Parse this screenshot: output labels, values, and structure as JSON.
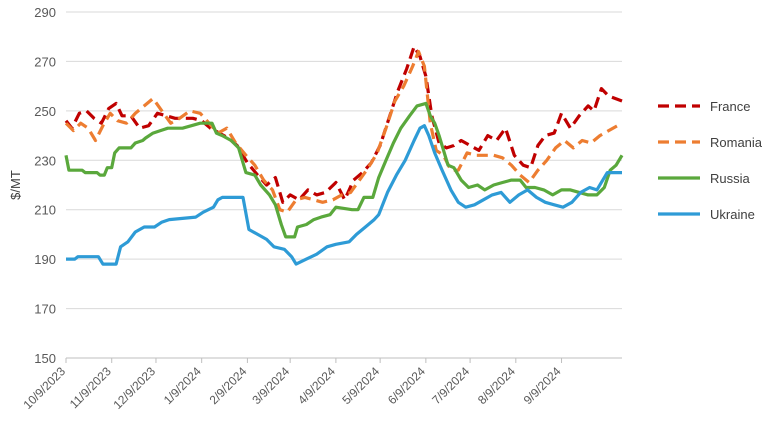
{
  "chart_data": {
    "type": "line",
    "ylabel": "$/MT",
    "ylim": [
      150,
      290
    ],
    "yticks": [
      150,
      170,
      190,
      210,
      230,
      250,
      270,
      290
    ],
    "xlim": [
      "2023-10-09",
      "2024-10-20"
    ],
    "xticks": [
      "10/9/2023",
      "11/9/2023",
      "12/9/2023",
      "1/9/2024",
      "2/9/2024",
      "3/9/2024",
      "4/9/2024",
      "5/9/2024",
      "6/9/2024",
      "7/9/2024",
      "8/9/2024",
      "9/9/2024"
    ],
    "grid": "horizontal",
    "legend": "right",
    "series": [
      {
        "name": "France",
        "color": "#c00000",
        "dash": "dashed",
        "points": [
          [
            "2023-10-09",
            246
          ],
          [
            "2023-10-13",
            243
          ],
          [
            "2023-10-18",
            249
          ],
          [
            "2023-10-23",
            250
          ],
          [
            "2023-10-28",
            247
          ],
          [
            "2023-11-02",
            245
          ],
          [
            "2023-11-07",
            251
          ],
          [
            "2023-11-12",
            253
          ],
          [
            "2023-11-16",
            248
          ],
          [
            "2023-11-22",
            248
          ],
          [
            "2023-11-28",
            243
          ],
          [
            "2023-12-04",
            244
          ],
          [
            "2023-12-10",
            249
          ],
          [
            "2023-12-16",
            248
          ],
          [
            "2023-12-22",
            247
          ],
          [
            "2023-12-28",
            247
          ],
          [
            "2024-01-03",
            247
          ],
          [
            "2024-01-09",
            246
          ],
          [
            "2024-01-15",
            243
          ],
          [
            "2024-01-21",
            241
          ],
          [
            "2024-01-27",
            239
          ],
          [
            "2024-02-02",
            236
          ],
          [
            "2024-02-09",
            229
          ],
          [
            "2024-02-16",
            224
          ],
          [
            "2024-02-22",
            220
          ],
          [
            "2024-02-28",
            223
          ],
          [
            "2024-03-04",
            213
          ],
          [
            "2024-03-09",
            216
          ],
          [
            "2024-03-15",
            214
          ],
          [
            "2024-03-21",
            218
          ],
          [
            "2024-03-27",
            216
          ],
          [
            "2024-04-02",
            217
          ],
          [
            "2024-04-09",
            221
          ],
          [
            "2024-04-15",
            214
          ],
          [
            "2024-04-21",
            222
          ],
          [
            "2024-04-27",
            225
          ],
          [
            "2024-05-03",
            229
          ],
          [
            "2024-05-09",
            236
          ],
          [
            "2024-05-15",
            247
          ],
          [
            "2024-05-21",
            258
          ],
          [
            "2024-05-27",
            267
          ],
          [
            "2024-06-01",
            276
          ],
          [
            "2024-06-05",
            272
          ],
          [
            "2024-06-09",
            264
          ],
          [
            "2024-06-13",
            248
          ],
          [
            "2024-06-18",
            237
          ],
          [
            "2024-06-23",
            235
          ],
          [
            "2024-06-28",
            236
          ],
          [
            "2024-07-03",
            238
          ],
          [
            "2024-07-09",
            236
          ],
          [
            "2024-07-15",
            234
          ],
          [
            "2024-07-21",
            240
          ],
          [
            "2024-07-27",
            238
          ],
          [
            "2024-08-02",
            243
          ],
          [
            "2024-08-08",
            232
          ],
          [
            "2024-08-14",
            228
          ],
          [
            "2024-08-19",
            227
          ],
          [
            "2024-08-24",
            236
          ],
          [
            "2024-08-29",
            240
          ],
          [
            "2024-09-04",
            241
          ],
          [
            "2024-09-09",
            249
          ],
          [
            "2024-09-15",
            243
          ],
          [
            "2024-09-21",
            248
          ],
          [
            "2024-09-27",
            252
          ],
          [
            "2024-10-01",
            250
          ],
          [
            "2024-10-06",
            259
          ],
          [
            "2024-10-11",
            256
          ],
          [
            "2024-10-20",
            254
          ]
        ]
      },
      {
        "name": "Romania",
        "color": "#ed7d31",
        "dash": "dashed",
        "points": [
          [
            "2023-10-09",
            245
          ],
          [
            "2023-10-14",
            242
          ],
          [
            "2023-10-19",
            245
          ],
          [
            "2023-10-24",
            243
          ],
          [
            "2023-10-29",
            238
          ],
          [
            "2023-11-03",
            244
          ],
          [
            "2023-11-08",
            249
          ],
          [
            "2023-11-13",
            246
          ],
          [
            "2023-11-19",
            245
          ],
          [
            "2023-11-25",
            249
          ],
          [
            "2023-12-01",
            252
          ],
          [
            "2023-12-07",
            255
          ],
          [
            "2023-12-13",
            250
          ],
          [
            "2023-12-19",
            245
          ],
          [
            "2023-12-25",
            247
          ],
          [
            "2024-01-01",
            250
          ],
          [
            "2024-01-08",
            249
          ],
          [
            "2024-01-14",
            245
          ],
          [
            "2024-01-20",
            241
          ],
          [
            "2024-01-26",
            243
          ],
          [
            "2024-02-01",
            237
          ],
          [
            "2024-02-08",
            232
          ],
          [
            "2024-02-14",
            228
          ],
          [
            "2024-02-20",
            222
          ],
          [
            "2024-02-26",
            218
          ],
          [
            "2024-03-02",
            210
          ],
          [
            "2024-03-07",
            209
          ],
          [
            "2024-03-13",
            214
          ],
          [
            "2024-03-19",
            215
          ],
          [
            "2024-03-25",
            214
          ],
          [
            "2024-03-31",
            213
          ],
          [
            "2024-04-07",
            214
          ],
          [
            "2024-04-13",
            216
          ],
          [
            "2024-04-19",
            217
          ],
          [
            "2024-04-25",
            222
          ],
          [
            "2024-05-01",
            227
          ],
          [
            "2024-05-07",
            233
          ],
          [
            "2024-05-13",
            243
          ],
          [
            "2024-05-19",
            254
          ],
          [
            "2024-05-25",
            260
          ],
          [
            "2024-05-31",
            268
          ],
          [
            "2024-06-04",
            274
          ],
          [
            "2024-06-08",
            268
          ],
          [
            "2024-06-12",
            245
          ],
          [
            "2024-06-16",
            234
          ],
          [
            "2024-06-21",
            232
          ],
          [
            "2024-06-26",
            226
          ],
          [
            "2024-07-01",
            226
          ],
          [
            "2024-07-07",
            233
          ],
          [
            "2024-07-13",
            232
          ],
          [
            "2024-07-19",
            232
          ],
          [
            "2024-07-25",
            232
          ],
          [
            "2024-07-31",
            231
          ],
          [
            "2024-08-06",
            228
          ],
          [
            "2024-08-12",
            224
          ],
          [
            "2024-08-18",
            221
          ],
          [
            "2024-08-24",
            226
          ],
          [
            "2024-08-30",
            230
          ],
          [
            "2024-09-05",
            235
          ],
          [
            "2024-09-11",
            238
          ],
          [
            "2024-09-17",
            235
          ],
          [
            "2024-09-23",
            238
          ],
          [
            "2024-09-29",
            237
          ],
          [
            "2024-10-05",
            240
          ],
          [
            "2024-10-11",
            242
          ],
          [
            "2024-10-20",
            245
          ]
        ]
      },
      {
        "name": "Russia",
        "color": "#5aa83c",
        "dash": "solid",
        "points": [
          [
            "2023-10-09",
            232
          ],
          [
            "2023-10-11",
            226
          ],
          [
            "2023-10-20",
            226
          ],
          [
            "2023-10-22",
            225
          ],
          [
            "2023-10-30",
            225
          ],
          [
            "2023-11-01",
            224
          ],
          [
            "2023-11-04",
            224
          ],
          [
            "2023-11-06",
            227
          ],
          [
            "2023-11-09",
            227
          ],
          [
            "2023-11-11",
            233
          ],
          [
            "2023-11-14",
            235
          ],
          [
            "2023-11-22",
            235
          ],
          [
            "2023-11-25",
            237
          ],
          [
            "2023-11-30",
            238
          ],
          [
            "2023-12-02",
            239
          ],
          [
            "2023-12-07",
            241
          ],
          [
            "2023-12-12",
            242
          ],
          [
            "2023-12-17",
            243
          ],
          [
            "2023-12-27",
            243
          ],
          [
            "2024-01-02",
            244
          ],
          [
            "2024-01-08",
            245
          ],
          [
            "2024-01-16",
            245
          ],
          [
            "2024-01-19",
            241
          ],
          [
            "2024-01-23",
            240
          ],
          [
            "2024-01-29",
            238
          ],
          [
            "2024-02-03",
            235
          ],
          [
            "2024-02-08",
            225
          ],
          [
            "2024-02-14",
            224
          ],
          [
            "2024-02-18",
            220
          ],
          [
            "2024-02-24",
            216
          ],
          [
            "2024-02-28",
            212
          ],
          [
            "2024-03-03",
            204
          ],
          [
            "2024-03-06",
            199
          ],
          [
            "2024-03-12",
            199
          ],
          [
            "2024-03-14",
            203
          ],
          [
            "2024-03-20",
            204
          ],
          [
            "2024-03-25",
            206
          ],
          [
            "2024-03-30",
            207
          ],
          [
            "2024-04-05",
            208
          ],
          [
            "2024-04-09",
            211
          ],
          [
            "2024-04-20",
            210
          ],
          [
            "2024-04-24",
            210
          ],
          [
            "2024-04-28",
            215
          ],
          [
            "2024-05-04",
            215
          ],
          [
            "2024-05-08",
            223
          ],
          [
            "2024-05-13",
            230
          ],
          [
            "2024-05-18",
            237
          ],
          [
            "2024-05-23",
            243
          ],
          [
            "2024-05-29",
            248
          ],
          [
            "2024-06-03",
            252
          ],
          [
            "2024-06-09",
            253
          ],
          [
            "2024-06-12",
            248
          ],
          [
            "2024-06-15",
            245
          ],
          [
            "2024-06-18",
            240
          ],
          [
            "2024-06-24",
            228
          ],
          [
            "2024-06-28",
            227
          ],
          [
            "2024-07-03",
            222
          ],
          [
            "2024-07-08",
            219
          ],
          [
            "2024-07-14",
            220
          ],
          [
            "2024-07-19",
            218
          ],
          [
            "2024-07-25",
            220
          ],
          [
            "2024-07-31",
            221
          ],
          [
            "2024-08-06",
            222
          ],
          [
            "2024-08-12",
            222
          ],
          [
            "2024-08-16",
            219
          ],
          [
            "2024-08-22",
            219
          ],
          [
            "2024-08-28",
            218
          ],
          [
            "2024-09-03",
            216
          ],
          [
            "2024-09-09",
            218
          ],
          [
            "2024-09-15",
            218
          ],
          [
            "2024-09-21",
            217
          ],
          [
            "2024-09-27",
            216
          ],
          [
            "2024-10-03",
            216
          ],
          [
            "2024-10-08",
            219
          ],
          [
            "2024-10-12",
            226
          ],
          [
            "2024-10-16",
            228
          ],
          [
            "2024-10-20",
            232
          ]
        ]
      },
      {
        "name": "Ukraine",
        "color": "#2e9bd6",
        "dash": "solid",
        "points": [
          [
            "2023-10-09",
            190
          ],
          [
            "2023-10-15",
            190
          ],
          [
            "2023-10-17",
            191
          ],
          [
            "2023-10-31",
            191
          ],
          [
            "2023-11-03",
            188
          ],
          [
            "2023-11-12",
            188
          ],
          [
            "2023-11-15",
            195
          ],
          [
            "2023-11-20",
            197
          ],
          [
            "2023-11-25",
            201
          ],
          [
            "2023-12-01",
            203
          ],
          [
            "2023-12-08",
            203
          ],
          [
            "2023-12-13",
            205
          ],
          [
            "2023-12-18",
            206
          ],
          [
            "2024-01-05",
            207
          ],
          [
            "2024-01-10",
            209
          ],
          [
            "2024-01-17",
            211
          ],
          [
            "2024-01-20",
            214
          ],
          [
            "2024-01-23",
            215
          ],
          [
            "2024-02-06",
            215
          ],
          [
            "2024-02-10",
            202
          ],
          [
            "2024-02-16",
            200
          ],
          [
            "2024-02-22",
            198
          ],
          [
            "2024-02-27",
            195
          ],
          [
            "2024-03-05",
            194
          ],
          [
            "2024-03-10",
            191
          ],
          [
            "2024-03-13",
            188
          ],
          [
            "2024-03-20",
            190
          ],
          [
            "2024-03-27",
            192
          ],
          [
            "2024-04-03",
            195
          ],
          [
            "2024-04-09",
            196
          ],
          [
            "2024-04-18",
            197
          ],
          [
            "2024-04-23",
            200
          ],
          [
            "2024-04-29",
            203
          ],
          [
            "2024-05-05",
            206
          ],
          [
            "2024-05-08",
            208
          ],
          [
            "2024-05-14",
            217
          ],
          [
            "2024-05-20",
            224
          ],
          [
            "2024-05-26",
            230
          ],
          [
            "2024-06-01",
            238
          ],
          [
            "2024-06-05",
            243
          ],
          [
            "2024-06-08",
            244
          ],
          [
            "2024-06-11",
            240
          ],
          [
            "2024-06-15",
            233
          ],
          [
            "2024-06-20",
            226
          ],
          [
            "2024-06-26",
            218
          ],
          [
            "2024-07-01",
            213
          ],
          [
            "2024-07-06",
            211
          ],
          [
            "2024-07-12",
            212
          ],
          [
            "2024-07-18",
            214
          ],
          [
            "2024-07-24",
            216
          ],
          [
            "2024-07-30",
            217
          ],
          [
            "2024-08-05",
            213
          ],
          [
            "2024-08-11",
            216
          ],
          [
            "2024-08-17",
            218
          ],
          [
            "2024-08-23",
            215
          ],
          [
            "2024-08-29",
            213
          ],
          [
            "2024-09-04",
            212
          ],
          [
            "2024-09-10",
            211
          ],
          [
            "2024-09-16",
            213
          ],
          [
            "2024-09-22",
            217
          ],
          [
            "2024-09-28",
            219
          ],
          [
            "2024-10-03",
            218
          ],
          [
            "2024-10-10",
            225
          ],
          [
            "2024-10-20",
            225
          ]
        ]
      }
    ]
  }
}
